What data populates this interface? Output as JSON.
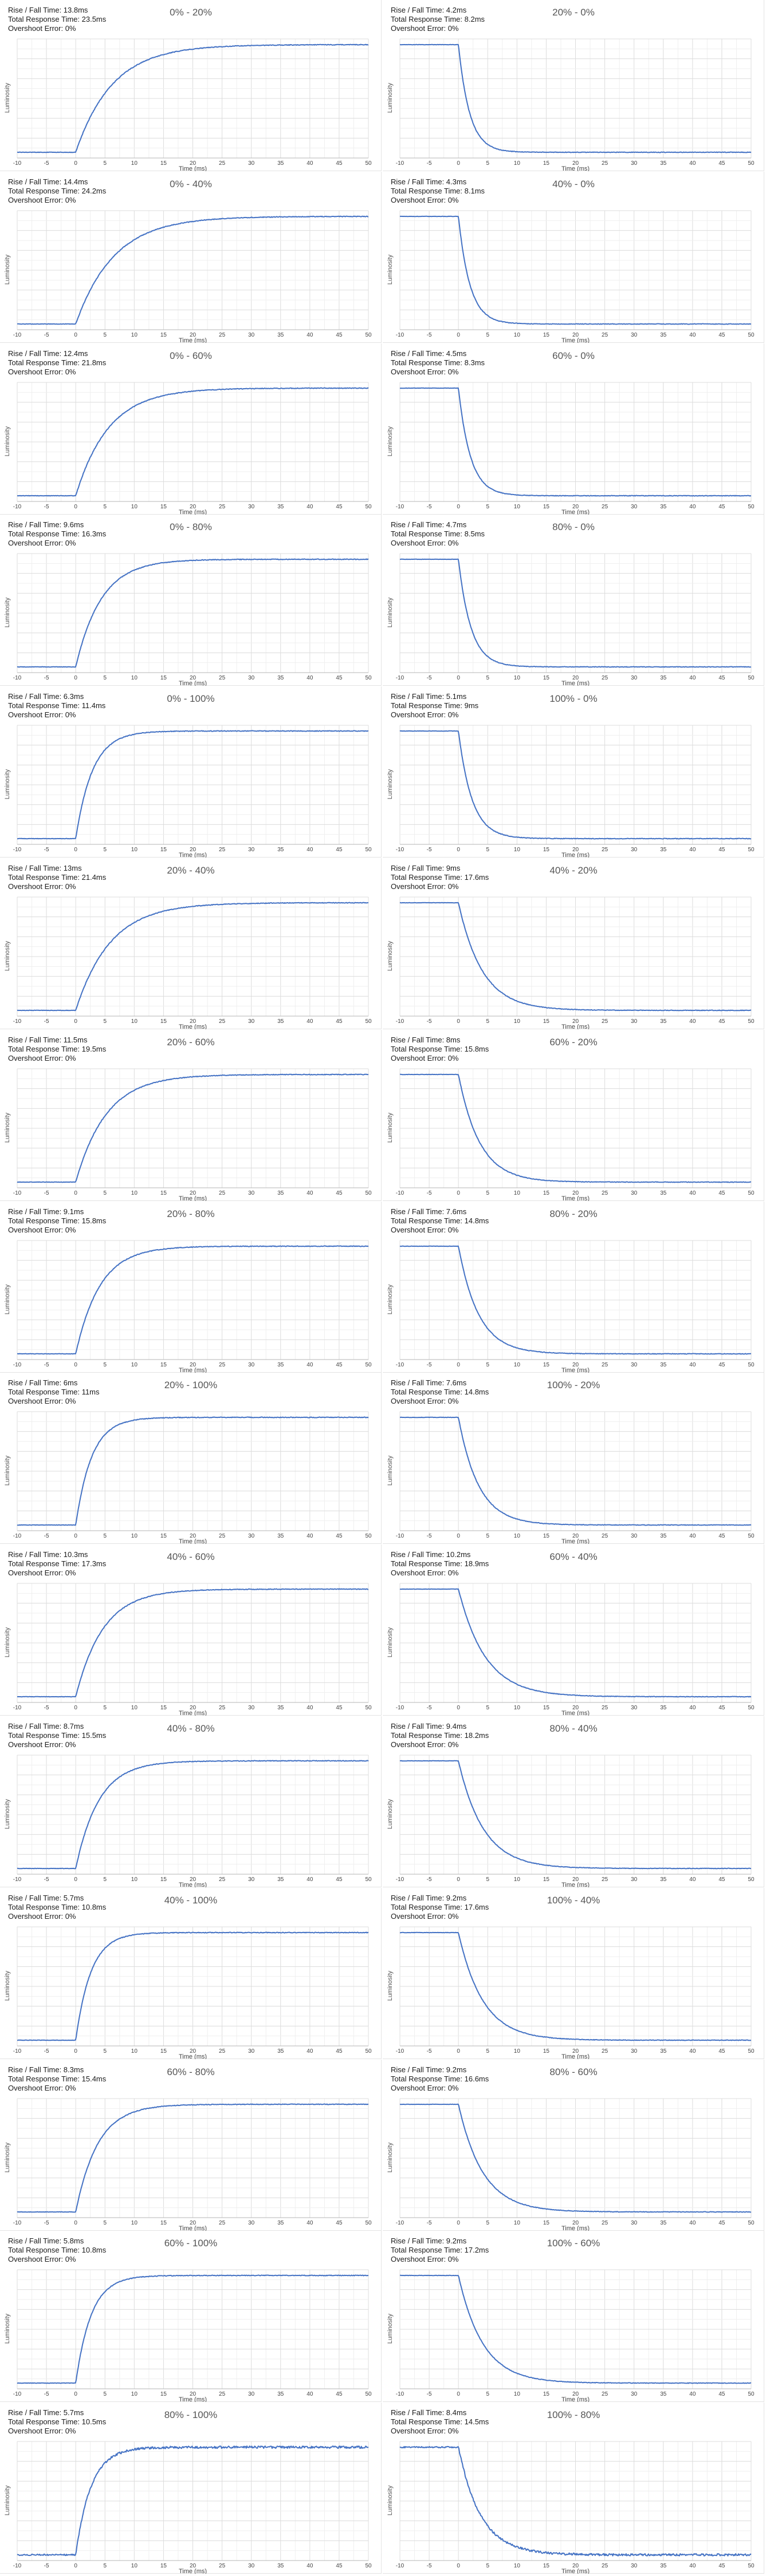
{
  "chart_data": {
    "type": "line",
    "layout": "grid of 15 rows x 2 columns of small line charts",
    "xlabel": "Time (ms)",
    "ylabel": "Luminosity",
    "x_ticks": [
      -10,
      -5,
      0,
      5,
      10,
      15,
      20,
      25,
      30,
      35,
      40,
      45,
      50
    ],
    "xlim": [
      -10,
      50
    ],
    "grid": true,
    "series_color": "#4472c4",
    "panels": [
      {
        "title": "0% - 20%",
        "from": 0,
        "to": 20,
        "rise_fall": "Rise / Fall Time: 13.8ms",
        "total": "Total Response Time: 23.5ms",
        "overshoot": "Overshoot Error: 0%"
      },
      {
        "title": "20% - 0%",
        "from": 20,
        "to": 0,
        "rise_fall": "Rise / Fall Time: 4.2ms",
        "total": "Total Response Time: 8.2ms",
        "overshoot": "Overshoot Error: 0%"
      },
      {
        "title": "0% - 40%",
        "from": 0,
        "to": 40,
        "rise_fall": "Rise / Fall Time: 14.4ms",
        "total": "Total Response Time: 24.2ms",
        "overshoot": "Overshoot Error: 0%"
      },
      {
        "title": "40% - 0%",
        "from": 40,
        "to": 0,
        "rise_fall": "Rise / Fall Time: 4.3ms",
        "total": "Total Response Time: 8.1ms",
        "overshoot": "Overshoot Error: 0%"
      },
      {
        "title": "0% - 60%",
        "from": 0,
        "to": 60,
        "rise_fall": "Rise / Fall Time: 12.4ms",
        "total": "Total Response Time: 21.8ms",
        "overshoot": "Overshoot Error: 0%"
      },
      {
        "title": "60% - 0%",
        "from": 60,
        "to": 0,
        "rise_fall": "Rise / Fall Time: 4.5ms",
        "total": "Total Response Time: 8.3ms",
        "overshoot": "Overshoot Error: 0%"
      },
      {
        "title": "0% - 80%",
        "from": 0,
        "to": 80,
        "rise_fall": "Rise / Fall Time: 9.6ms",
        "total": "Total Response Time: 16.3ms",
        "overshoot": "Overshoot Error: 0%"
      },
      {
        "title": "80% - 0%",
        "from": 80,
        "to": 0,
        "rise_fall": "Rise / Fall Time: 4.7ms",
        "total": "Total Response Time: 8.5ms",
        "overshoot": "Overshoot Error: 0%"
      },
      {
        "title": "0% - 100%",
        "from": 0,
        "to": 100,
        "rise_fall": "Rise / Fall Time: 6.3ms",
        "total": "Total Response Time: 11.4ms",
        "overshoot": "Overshoot Error: 0%"
      },
      {
        "title": "100% - 0%",
        "from": 100,
        "to": 0,
        "rise_fall": "Rise / Fall Time: 5.1ms",
        "total": "Total Response Time: 9ms",
        "overshoot": "Overshoot Error: 0%"
      },
      {
        "title": "20% - 40%",
        "from": 20,
        "to": 40,
        "rise_fall": "Rise / Fall Time: 13ms",
        "total": "Total Response Time: 21.4ms",
        "overshoot": "Overshoot Error: 0%"
      },
      {
        "title": "40% - 20%",
        "from": 40,
        "to": 20,
        "rise_fall": "Rise / Fall Time: 9ms",
        "total": "Total Response Time: 17.6ms",
        "overshoot": "Overshoot Error: 0%"
      },
      {
        "title": "20% - 60%",
        "from": 20,
        "to": 60,
        "rise_fall": "Rise / Fall Time: 11.5ms",
        "total": "Total Response Time: 19.5ms",
        "overshoot": "Overshoot Error: 0%"
      },
      {
        "title": "60% - 20%",
        "from": 60,
        "to": 20,
        "rise_fall": "Rise / Fall Time: 8ms",
        "total": "Total Response Time: 15.8ms",
        "overshoot": "Overshoot Error: 0%"
      },
      {
        "title": "20% - 80%",
        "from": 20,
        "to": 80,
        "rise_fall": "Rise / Fall Time: 9.1ms",
        "total": "Total Response Time: 15.8ms",
        "overshoot": "Overshoot Error: 0%"
      },
      {
        "title": "80% - 20%",
        "from": 80,
        "to": 20,
        "rise_fall": "Rise / Fall Time: 7.6ms",
        "total": "Total Response Time: 14.8ms",
        "overshoot": "Overshoot Error: 0%"
      },
      {
        "title": "20% - 100%",
        "from": 20,
        "to": 100,
        "rise_fall": "Rise / Fall Time: 6ms",
        "total": "Total Response Time: 11ms",
        "overshoot": "Overshoot Error: 0%"
      },
      {
        "title": "100% - 20%",
        "from": 100,
        "to": 20,
        "rise_fall": "Rise / Fall Time: 7.6ms",
        "total": "Total Response Time: 14.8ms",
        "overshoot": "Overshoot Error: 0%"
      },
      {
        "title": "40% - 60%",
        "from": 40,
        "to": 60,
        "rise_fall": "Rise / Fall Time: 10.3ms",
        "total": "Total Response Time: 17.3ms",
        "overshoot": "Overshoot Error: 0%"
      },
      {
        "title": "60% - 40%",
        "from": 60,
        "to": 40,
        "rise_fall": "Rise / Fall Time: 10.2ms",
        "total": "Total Response Time: 18.9ms",
        "overshoot": "Overshoot Error: 0%"
      },
      {
        "title": "40% - 80%",
        "from": 40,
        "to": 80,
        "rise_fall": "Rise / Fall Time: 8.7ms",
        "total": "Total Response Time: 15.5ms",
        "overshoot": "Overshoot Error: 0%"
      },
      {
        "title": "80% - 40%",
        "from": 80,
        "to": 40,
        "rise_fall": "Rise / Fall Time: 9.4ms",
        "total": "Total Response Time: 18.2ms",
        "overshoot": "Overshoot Error: 0%"
      },
      {
        "title": "40% - 100%",
        "from": 40,
        "to": 100,
        "rise_fall": "Rise / Fall Time: 5.7ms",
        "total": "Total Response Time: 10.8ms",
        "overshoot": "Overshoot Error: 0%"
      },
      {
        "title": "100% - 40%",
        "from": 100,
        "to": 40,
        "rise_fall": "Rise / Fall Time: 9.2ms",
        "total": "Total Response Time: 17.6ms",
        "overshoot": "Overshoot Error: 0%"
      },
      {
        "title": "60% - 80%",
        "from": 60,
        "to": 80,
        "rise_fall": "Rise / Fall Time: 8.3ms",
        "total": "Total Response Time: 15.4ms",
        "overshoot": "Overshoot Error: 0%"
      },
      {
        "title": "80% - 60%",
        "from": 80,
        "to": 60,
        "rise_fall": "Rise / Fall Time: 9.2ms",
        "total": "Total Response Time: 16.6ms",
        "overshoot": "Overshoot Error: 0%"
      },
      {
        "title": "60% - 100%",
        "from": 60,
        "to": 100,
        "rise_fall": "Rise / Fall Time: 5.8ms",
        "total": "Total Response Time: 10.8ms",
        "overshoot": "Overshoot Error: 0%"
      },
      {
        "title": "100% - 60%",
        "from": 100,
        "to": 60,
        "rise_fall": "Rise / Fall Time: 9.2ms",
        "total": "Total Response Time: 17.2ms",
        "overshoot": "Overshoot Error: 0%"
      },
      {
        "title": "80% - 100%",
        "from": 80,
        "to": 100,
        "rise_fall": "Rise / Fall Time: 5.7ms",
        "total": "Total Response Time: 10.5ms",
        "overshoot": "Overshoot Error: 0%"
      },
      {
        "title": "100% - 80%",
        "from": 100,
        "to": 80,
        "rise_fall": "Rise / Fall Time: 8.4ms",
        "total": "Total Response Time: 14.5ms",
        "overshoot": "Overshoot Error: 0%"
      }
    ]
  }
}
